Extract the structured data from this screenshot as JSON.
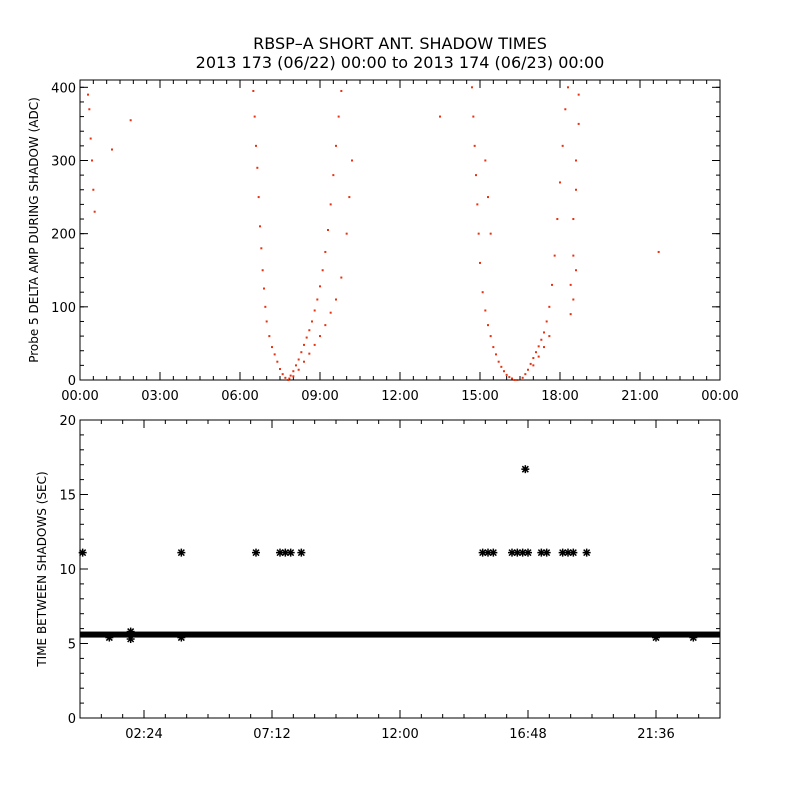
{
  "title_line1": "RBSP–A SHORT ANT. SHADOW TIMES",
  "title_line2": "2013 173 (06/22) 00:00 to 2013 174 (06/23) 00:00",
  "colors": {
    "top_series": "#e8310f",
    "bottom_series": "#000000"
  },
  "chart_data": [
    {
      "type": "scatter",
      "ylabel": "Probe 5 DELTA AMP DURING SHADOW (ADC)",
      "xlim": [
        0,
        24
      ],
      "ylim": [
        0,
        410
      ],
      "x_ticks": [
        0,
        3,
        6,
        9,
        12,
        15,
        18,
        21,
        24
      ],
      "x_tick_labels": [
        "00:00",
        "03:00",
        "06:00",
        "09:00",
        "12:00",
        "15:00",
        "18:00",
        "21:00",
        "00:00"
      ],
      "y_ticks": [
        0,
        100,
        200,
        300,
        400
      ],
      "y_tick_labels": [
        "0",
        "100",
        "200",
        "300",
        "400"
      ],
      "series": [
        {
          "color": "#e8310f",
          "points": [
            [
              0.3,
              390
            ],
            [
              0.35,
              370
            ],
            [
              0.4,
              330
            ],
            [
              0.45,
              300
            ],
            [
              0.5,
              260
            ],
            [
              0.55,
              230
            ],
            [
              1.2,
              315
            ],
            [
              1.9,
              355
            ],
            [
              13.5,
              360
            ],
            [
              21.7,
              175
            ],
            [
              6.5,
              395
            ],
            [
              6.55,
              360
            ],
            [
              6.6,
              320
            ],
            [
              6.65,
              290
            ],
            [
              6.7,
              250
            ],
            [
              6.75,
              210
            ],
            [
              6.8,
              180
            ],
            [
              6.85,
              150
            ],
            [
              6.9,
              125
            ],
            [
              6.95,
              100
            ],
            [
              7.0,
              80
            ],
            [
              7.1,
              60
            ],
            [
              7.2,
              45
            ],
            [
              7.3,
              35
            ],
            [
              7.4,
              25
            ],
            [
              7.5,
              15
            ],
            [
              7.6,
              8
            ],
            [
              7.7,
              3
            ],
            [
              7.8,
              0
            ],
            [
              7.85,
              2
            ],
            [
              7.9,
              6
            ],
            [
              8.0,
              12
            ],
            [
              8.1,
              20
            ],
            [
              8.2,
              28
            ],
            [
              8.3,
              38
            ],
            [
              8.4,
              48
            ],
            [
              8.5,
              58
            ],
            [
              8.6,
              68
            ],
            [
              8.7,
              80
            ],
            [
              8.8,
              95
            ],
            [
              8.9,
              110
            ],
            [
              9.0,
              128
            ],
            [
              9.1,
              150
            ],
            [
              9.2,
              175
            ],
            [
              9.3,
              205
            ],
            [
              9.4,
              240
            ],
            [
              9.5,
              280
            ],
            [
              9.6,
              320
            ],
            [
              9.7,
              360
            ],
            [
              9.8,
              395
            ],
            [
              8.0,
              5
            ],
            [
              8.2,
              14
            ],
            [
              8.4,
              25
            ],
            [
              8.6,
              36
            ],
            [
              8.8,
              48
            ],
            [
              9.0,
              60
            ],
            [
              9.2,
              75
            ],
            [
              9.4,
              92
            ],
            [
              9.6,
              110
            ],
            [
              9.8,
              140
            ],
            [
              10.0,
              200
            ],
            [
              10.1,
              250
            ],
            [
              10.2,
              300
            ],
            [
              14.7,
              400
            ],
            [
              14.75,
              360
            ],
            [
              14.8,
              320
            ],
            [
              14.85,
              280
            ],
            [
              14.9,
              240
            ],
            [
              14.95,
              200
            ],
            [
              15.0,
              160
            ],
            [
              15.1,
              120
            ],
            [
              15.2,
              95
            ],
            [
              15.3,
              75
            ],
            [
              15.4,
              60
            ],
            [
              15.5,
              45
            ],
            [
              15.6,
              35
            ],
            [
              15.7,
              25
            ],
            [
              15.8,
              18
            ],
            [
              15.9,
              12
            ],
            [
              16.0,
              7
            ],
            [
              16.1,
              4
            ],
            [
              16.2,
              2
            ],
            [
              16.3,
              0
            ],
            [
              16.4,
              0
            ],
            [
              15.2,
              300
            ],
            [
              15.3,
              250
            ],
            [
              15.4,
              200
            ],
            [
              16.6,
              3
            ],
            [
              16.7,
              8
            ],
            [
              16.8,
              14
            ],
            [
              16.9,
              22
            ],
            [
              17.0,
              30
            ],
            [
              17.1,
              38
            ],
            [
              17.2,
              46
            ],
            [
              17.3,
              55
            ],
            [
              17.4,
              65
            ],
            [
              17.5,
              80
            ],
            [
              17.6,
              100
            ],
            [
              17.7,
              130
            ],
            [
              17.8,
              170
            ],
            [
              17.9,
              220
            ],
            [
              18.0,
              270
            ],
            [
              18.1,
              320
            ],
            [
              18.2,
              370
            ],
            [
              18.3,
              400
            ],
            [
              17.0,
              20
            ],
            [
              17.2,
              32
            ],
            [
              17.4,
              45
            ],
            [
              17.6,
              60
            ],
            [
              18.4,
              90
            ],
            [
              18.4,
              130
            ],
            [
              18.5,
              170
            ],
            [
              18.5,
              220
            ],
            [
              18.6,
              260
            ],
            [
              18.6,
              300
            ],
            [
              18.7,
              350
            ],
            [
              18.7,
              390
            ],
            [
              18.5,
              110
            ],
            [
              18.6,
              150
            ]
          ]
        }
      ]
    },
    {
      "type": "scatter",
      "ylabel": "TIME BETWEEN SHADOWS (SEC)",
      "xlim": [
        0,
        24
      ],
      "ylim": [
        0,
        20
      ],
      "x_ticks": [
        2.4,
        7.2,
        12.0,
        16.8,
        21.6
      ],
      "x_tick_labels": [
        "02:24",
        "07:12",
        "12:00",
        "16:48",
        "21:36"
      ],
      "y_ticks": [
        0,
        5,
        10,
        15,
        20
      ],
      "y_tick_labels": [
        "0",
        "5",
        "10",
        "15",
        "20"
      ],
      "baseline_value": 5.6,
      "series": [
        {
          "color": "#000000",
          "points": [
            [
              0.1,
              11.1
            ],
            [
              3.8,
              11.1
            ],
            [
              6.6,
              11.1
            ],
            [
              7.5,
              11.1
            ],
            [
              7.7,
              11.1
            ],
            [
              7.9,
              11.1
            ],
            [
              8.3,
              11.1
            ],
            [
              15.1,
              11.1
            ],
            [
              15.3,
              11.1
            ],
            [
              15.5,
              11.1
            ],
            [
              16.2,
              11.1
            ],
            [
              16.4,
              11.1
            ],
            [
              16.6,
              11.1
            ],
            [
              16.7,
              16.7
            ],
            [
              16.8,
              11.1
            ],
            [
              17.3,
              11.1
            ],
            [
              17.5,
              11.1
            ],
            [
              18.1,
              11.1
            ],
            [
              18.3,
              11.1
            ],
            [
              18.5,
              11.1
            ],
            [
              19.0,
              11.1
            ],
            [
              1.1,
              5.4
            ],
            [
              1.9,
              5.3
            ],
            [
              1.9,
              5.8
            ],
            [
              3.8,
              5.4
            ],
            [
              21.6,
              5.4
            ],
            [
              23.0,
              5.4
            ]
          ]
        }
      ]
    }
  ]
}
